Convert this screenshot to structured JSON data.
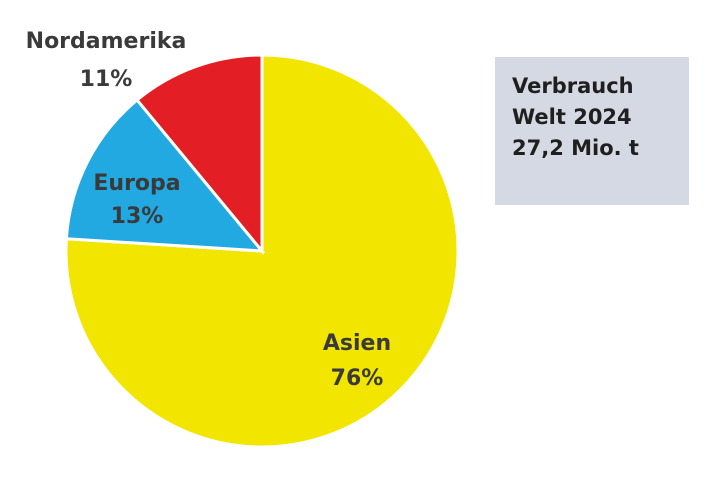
{
  "chart_data": {
    "type": "pie",
    "title": "",
    "slices": [
      {
        "label": "Asien",
        "value_label": "76%",
        "value": 76,
        "color": "#f2e500"
      },
      {
        "label": "Europa",
        "value_label": "13%",
        "value": 13,
        "color": "#22a9e1"
      },
      {
        "label": "Nordamerika",
        "value_label": "11%",
        "value": 11,
        "color": "#e31e24"
      }
    ],
    "start": "12 o'clock",
    "direction": "clockwise",
    "legend": "none (labels on/near slices)"
  },
  "info_box": {
    "lines": [
      "Verbrauch",
      "Welt 2024",
      "27,2 Mio. t"
    ],
    "background": "#d5d9e3"
  }
}
